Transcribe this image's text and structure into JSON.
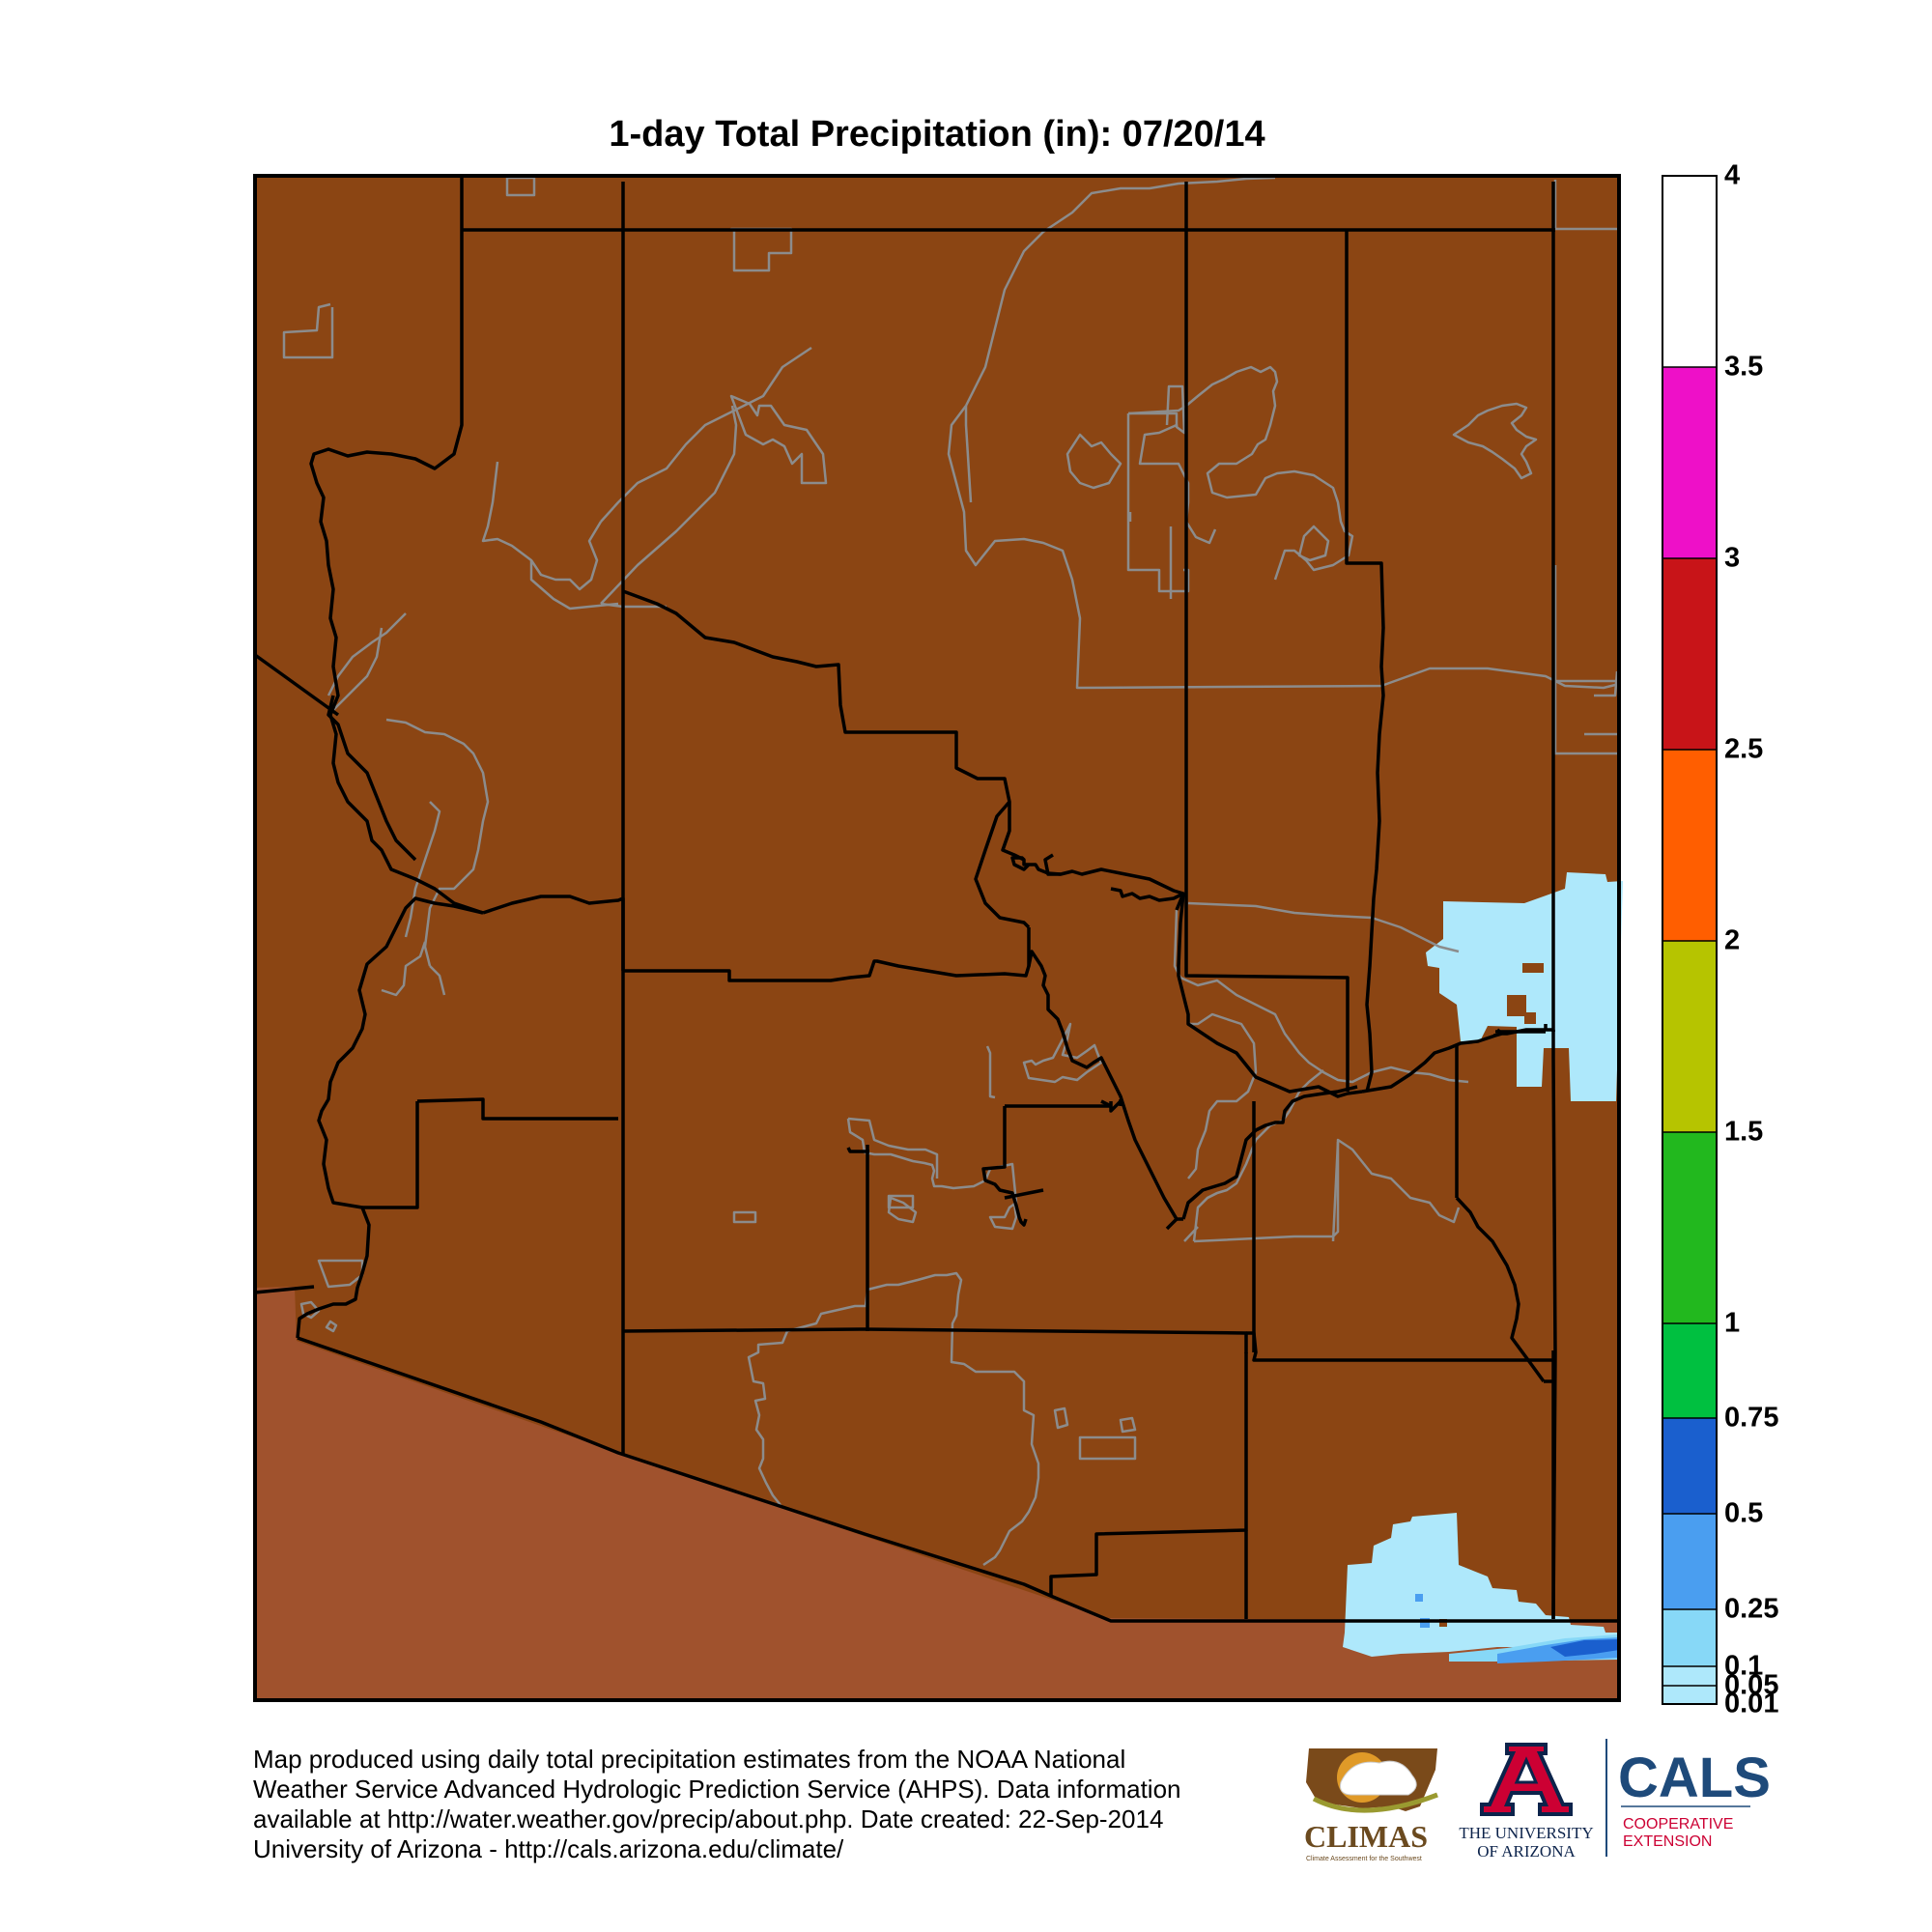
{
  "title": "1-day Total Precipitation (in): 07/20/14",
  "legend": {
    "tick_labels": [
      "4",
      "3.5",
      "3",
      "2.5",
      "2",
      "1.5",
      "1",
      "0.75",
      "0.5",
      "0.25",
      "0.1",
      "0.05",
      "0.01"
    ],
    "bins": [
      {
        "from": 0.01,
        "to": 0.05,
        "color": "#aee8fb"
      },
      {
        "from": 0.05,
        "to": 0.1,
        "color": "#aee8fb"
      },
      {
        "from": 0.1,
        "to": 0.25,
        "color": "#87d8f7"
      },
      {
        "from": 0.25,
        "to": 0.5,
        "color": "#4a9ef0"
      },
      {
        "from": 0.5,
        "to": 0.75,
        "color": "#1a5fce"
      },
      {
        "from": 0.75,
        "to": 1,
        "color": "#00c040"
      },
      {
        "from": 1,
        "to": 1.5,
        "color": "#22b81e"
      },
      {
        "from": 1.5,
        "to": 2,
        "color": "#b6c400"
      },
      {
        "from": 2,
        "to": 2.5,
        "color": "#ff5e00"
      },
      {
        "from": 2.5,
        "to": 3,
        "color": "#c81418"
      },
      {
        "from": 3,
        "to": 3.5,
        "color": "#ee10c8"
      },
      {
        "from": 3.5,
        "to": 4,
        "color": "#ffffff"
      }
    ]
  },
  "map_colors": {
    "zero_precip": "#8b4513",
    "outside": "#a0522d",
    "light_precip": "#aee8fb",
    "moderate_precip": "#4a9ef0",
    "county_lines": "#000000",
    "reservation_lines": "#8c8c8c"
  },
  "footer": {
    "lines": [
      "Map produced using daily total precipitation estimates from the NOAA National",
      "Weather Service Advanced Hydrologic Prediction Service (AHPS). Data information",
      "available at http://water.weather.gov/precip/about.php. Date created: 22-Sep-2014",
      "University of Arizona - http://cals.arizona.edu/climate/"
    ]
  },
  "logos": {
    "climas": "CLIMAS",
    "climas_tagline": "Climate Assessment for the Southwest",
    "ua_line1": "THE UNIVERSITY",
    "ua_line2": "OF ARIZONA",
    "cals": "CALS",
    "cals_line1": "COOPERATIVE",
    "cals_line2": "EXTENSION"
  }
}
